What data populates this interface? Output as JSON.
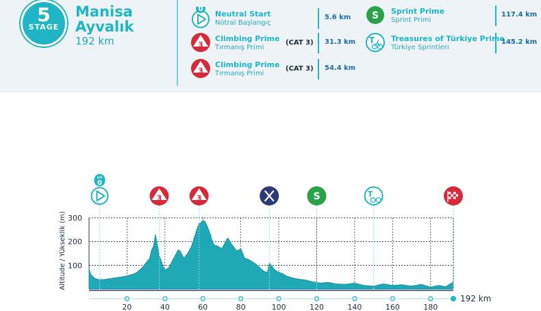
{
  "stage": {
    "label": "STAGE",
    "number": "5",
    "start": "Manisa",
    "finish": "Ayvalık",
    "distance": "192 km"
  },
  "points": [
    {
      "id": "neutral-start",
      "title": "Neutral Start",
      "subtitle": "Nötral Başlangıç",
      "km": "5.6 km",
      "icon": "play-icon",
      "icon_top_label": "KM",
      "icon_km": "0"
    },
    {
      "id": "climb-1",
      "title": "Climbing Prime",
      "subtitle": "Tırmanış Primi",
      "category": "(CAT 3)",
      "km": "31.3 km",
      "icon": "mountain-cat3-icon",
      "icon_label": "3"
    },
    {
      "id": "climb-2",
      "title": "Climbing Prime",
      "subtitle": "Tırmanış Primi",
      "category": "(CAT 3)",
      "km": "54.4 km",
      "icon": "mountain-cat3-icon",
      "icon_label": "3"
    },
    {
      "id": "sprint",
      "title": "Sprint Prime",
      "subtitle": "Sprint Primi",
      "km": "117.4 km",
      "icon": "sprint-s-icon",
      "icon_label": "S"
    },
    {
      "id": "treasures",
      "title": "Treasures of Türkiye Prime",
      "subtitle": "Türkiye Sprintleri",
      "km": "145.2 km",
      "icon": "treasure-cyclist-icon",
      "icon_label": "T"
    }
  ],
  "colors": {
    "accent": "#1fb5c4",
    "profile": "#1fa8b6",
    "climb_red": "#d42a3a",
    "sprint_green": "#2aa14b",
    "feed_navy": "#2a3a7a",
    "text_dark": "#1d2a44"
  },
  "chart_data": {
    "type": "area",
    "ylabel": "Altitude / Yükseklik (m)",
    "x_ticks": [
      20,
      40,
      60,
      80,
      100,
      120,
      140,
      160,
      180
    ],
    "y_ticks": [
      100,
      200,
      300
    ],
    "xlim": [
      0,
      192
    ],
    "ylim": [
      0,
      300
    ],
    "grid": true,
    "end_label": "192 km",
    "x": [
      0,
      1,
      3,
      5,
      8,
      12,
      16,
      20,
      24,
      26,
      28,
      30,
      32,
      33,
      34,
      35,
      36,
      37,
      38,
      39,
      40,
      42,
      44,
      46,
      47,
      48,
      50,
      52,
      54,
      56,
      57,
      58,
      59,
      60,
      61,
      62,
      63,
      64,
      65,
      66,
      68,
      70,
      72,
      73,
      74,
      75,
      76,
      78,
      80,
      82,
      84,
      86,
      88,
      90,
      92,
      94,
      95,
      96,
      98,
      100,
      102,
      104,
      106,
      108,
      110,
      114,
      118,
      122,
      126,
      130,
      135,
      140,
      145,
      150,
      155,
      160,
      165,
      170,
      175,
      180,
      184,
      188,
      192
    ],
    "y": [
      85,
      60,
      45,
      40,
      40,
      45,
      50,
      55,
      65,
      75,
      90,
      110,
      130,
      165,
      180,
      230,
      185,
      140,
      120,
      95,
      80,
      90,
      120,
      150,
      165,
      160,
      130,
      150,
      180,
      230,
      255,
      275,
      280,
      290,
      285,
      270,
      250,
      230,
      200,
      185,
      180,
      170,
      200,
      215,
      205,
      190,
      180,
      160,
      170,
      130,
      125,
      115,
      105,
      90,
      75,
      70,
      110,
      100,
      80,
      70,
      65,
      55,
      50,
      45,
      42,
      38,
      30,
      25,
      28,
      22,
      20,
      25,
      15,
      12,
      22,
      15,
      18,
      12,
      20,
      8,
      15,
      10,
      30
    ],
    "markers": [
      {
        "km": 5.6,
        "icon": "play-icon",
        "label": "0",
        "top_label": "KM"
      },
      {
        "km": 37,
        "icon": "mountain-cat3-icon",
        "label": "3"
      },
      {
        "km": 58,
        "icon": "mountain-cat3-icon",
        "label": "3"
      },
      {
        "km": 95,
        "icon": "feed-zone-icon"
      },
      {
        "km": 120,
        "icon": "sprint-s-icon",
        "label": "S"
      },
      {
        "km": 150,
        "icon": "treasure-cyclist-icon",
        "label": "T"
      },
      {
        "km": 192,
        "icon": "finish-flag-icon"
      }
    ]
  }
}
